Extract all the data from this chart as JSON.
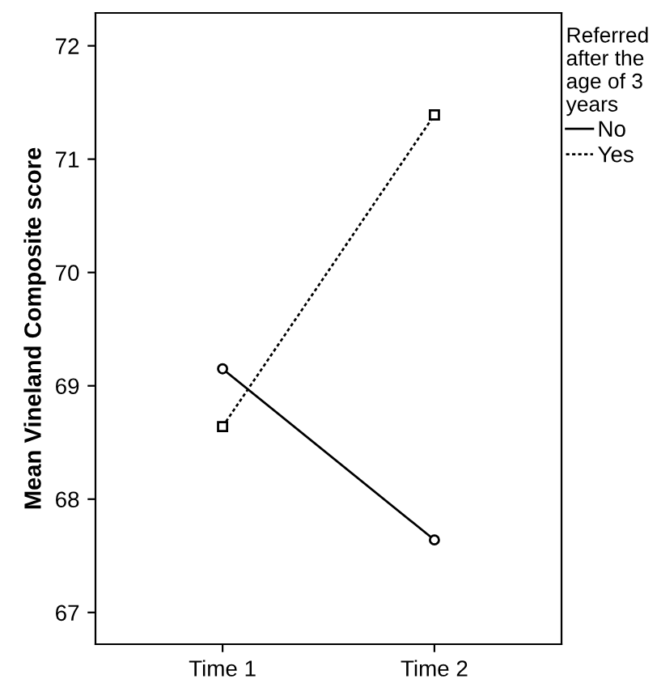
{
  "chart_data": {
    "type": "line",
    "ylabel": "Mean Vineland Composite score",
    "legend_title": "Referred\nafter the\nage of 3\nyears",
    "categories": [
      "Time 1",
      "Time 2"
    ],
    "series": [
      {
        "name": "No",
        "color": "#000000",
        "values": [
          69.15,
          67.64
        ],
        "line_style": "solid",
        "marker": "circle"
      },
      {
        "name": "Yes",
        "color": "#000000",
        "values": [
          68.64,
          71.39
        ],
        "line_style": "dotted",
        "marker": "square"
      }
    ],
    "ylim": [
      66.72,
      72.29
    ],
    "yticks": [
      67,
      68,
      69,
      70,
      71,
      72
    ],
    "grid": false,
    "legend": "right"
  }
}
